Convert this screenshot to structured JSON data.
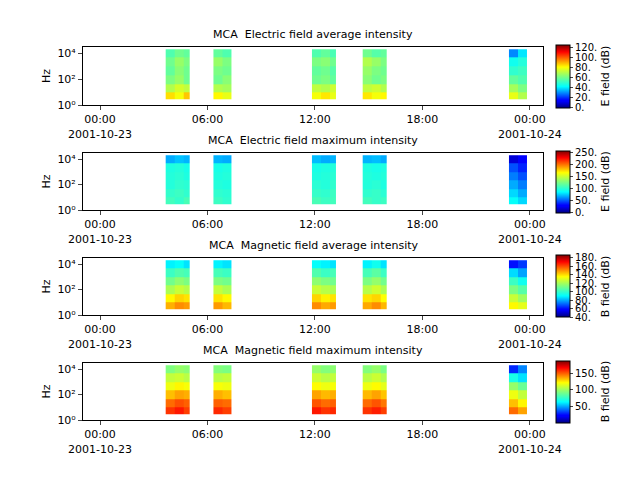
{
  "chart_data": [
    {
      "type": "heatmap",
      "title": "MCA  Electric field average intensity",
      "ylabel": "Hz",
      "log": "y",
      "x": [
        [
          "2001-10-23 03:40",
          "2001-10-23 04:10",
          "2001-10-23 04:40",
          "2001-10-23 05:00"
        ],
        [
          "2001-10-23 06:20",
          "2001-10-23 06:50",
          "2001-10-23 07:20"
        ],
        [
          "2001-10-23 11:50",
          "2001-10-23 12:20",
          "2001-10-23 12:50",
          "2001-10-23 13:10"
        ],
        [
          "2001-10-23 14:40",
          "2001-10-23 15:10",
          "2001-10-23 15:40",
          "2001-10-23 16:00"
        ],
        [
          "2001-10-23 22:50",
          "2001-10-23 23:20",
          "2001-10-23 23:50"
        ]
      ],
      "y": [
        3,
        10,
        40,
        200,
        1000,
        5000,
        20000
      ],
      "z": [
        [
          [
            85,
            80,
            88
          ],
          [
            70,
            75,
            72
          ],
          [
            62,
            66,
            60
          ],
          [
            58,
            64,
            60
          ],
          [
            60,
            66,
            62
          ],
          [
            55,
            60,
            58
          ]
        ],
        [
          [
            82,
            78
          ],
          [
            70,
            68
          ],
          [
            60,
            64
          ],
          [
            62,
            60
          ],
          [
            66,
            62
          ],
          [
            58,
            55
          ]
        ],
        [
          [
            80,
            84,
            78
          ],
          [
            72,
            70,
            74
          ],
          [
            60,
            62,
            58
          ],
          [
            58,
            60,
            56
          ],
          [
            62,
            64,
            60
          ],
          [
            55,
            58,
            54
          ]
        ],
        [
          [
            84,
            80,
            82
          ],
          [
            72,
            74,
            70
          ],
          [
            64,
            60,
            62
          ],
          [
            66,
            62,
            60
          ],
          [
            70,
            66,
            62
          ],
          [
            60,
            56,
            58
          ]
        ],
        [
          [
            78,
            70
          ],
          [
            68,
            62
          ],
          [
            58,
            55
          ],
          [
            50,
            52
          ],
          [
            45,
            48
          ],
          [
            30,
            40
          ]
        ]
      ],
      "xlim": [
        "2001-10-22 23:03",
        "2001-10-24 00:44"
      ],
      "xticks": [
        {
          "value": "2001-10-23 00:00",
          "label": "00:00\n2001-10-23"
        },
        {
          "value": "2001-10-23 06:00",
          "label": "06:00"
        },
        {
          "value": "2001-10-23 12:00",
          "label": "12:00"
        },
        {
          "value": "2001-10-23 18:00",
          "label": "18:00"
        },
        {
          "value": "2001-10-24 00:00",
          "label": "00:00\n2001-10-24"
        }
      ],
      "ylim": [
        1,
        30000
      ],
      "yticks": [
        {
          "value": 1,
          "label": "10⁰"
        },
        {
          "value": 100,
          "label": "10²"
        },
        {
          "value": 10000,
          "label": "10⁴"
        }
      ],
      "colorbar": {
        "title": "E field (dB)",
        "range": [
          0,
          125
        ],
        "ticks": [
          {
            "value": 0,
            "label": "0."
          },
          {
            "value": 20,
            "label": "20."
          },
          {
            "value": 40,
            "label": "40."
          },
          {
            "value": 60,
            "label": "60."
          },
          {
            "value": 80,
            "label": "80."
          },
          {
            "value": 100,
            "label": "100."
          },
          {
            "value": 120,
            "label": "120."
          }
        ]
      }
    },
    {
      "type": "heatmap",
      "title": "MCA  Electric field maximum intensity",
      "ylabel": "Hz",
      "log": "y",
      "x": [
        [
          "2001-10-23 03:40",
          "2001-10-23 04:10",
          "2001-10-23 04:40",
          "2001-10-23 05:00"
        ],
        [
          "2001-10-23 06:20",
          "2001-10-23 06:50",
          "2001-10-23 07:20"
        ],
        [
          "2001-10-23 11:50",
          "2001-10-23 12:20",
          "2001-10-23 12:50",
          "2001-10-23 13:10"
        ],
        [
          "2001-10-23 14:40",
          "2001-10-23 15:10",
          "2001-10-23 15:40",
          "2001-10-23 16:00"
        ],
        [
          "2001-10-23 22:50",
          "2001-10-23 23:20",
          "2001-10-23 23:50"
        ]
      ],
      "y": [
        3,
        10,
        40,
        200,
        1000,
        5000,
        20000
      ],
      "z": [
        [
          [
            110,
            105,
            112
          ],
          [
            105,
            108,
            104
          ],
          [
            100,
            104,
            102
          ],
          [
            100,
            102,
            98
          ],
          [
            98,
            100,
            96
          ],
          [
            70,
            75,
            72
          ]
        ],
        [
          [
            108,
            104
          ],
          [
            104,
            102
          ],
          [
            100,
            98
          ],
          [
            98,
            100
          ],
          [
            96,
            98
          ],
          [
            72,
            70
          ]
        ],
        [
          [
            112,
            108,
            110
          ],
          [
            106,
            104,
            108
          ],
          [
            102,
            100,
            104
          ],
          [
            98,
            100,
            102
          ],
          [
            96,
            98,
            100
          ],
          [
            74,
            70,
            72
          ]
        ],
        [
          [
            110,
            106,
            108
          ],
          [
            104,
            106,
            102
          ],
          [
            100,
            102,
            98
          ],
          [
            100,
            98,
            100
          ],
          [
            98,
            96,
            98
          ],
          [
            72,
            74,
            70
          ]
        ],
        [
          [
            90,
            80
          ],
          [
            80,
            70
          ],
          [
            70,
            60
          ],
          [
            60,
            50
          ],
          [
            50,
            40
          ],
          [
            20,
            30
          ]
        ]
      ],
      "xlim": [
        "2001-10-22 23:03",
        "2001-10-24 00:44"
      ],
      "xticks": [
        {
          "value": "2001-10-23 00:00",
          "label": "00:00\n2001-10-23"
        },
        {
          "value": "2001-10-23 06:00",
          "label": "06:00"
        },
        {
          "value": "2001-10-23 12:00",
          "label": "12:00"
        },
        {
          "value": "2001-10-23 18:00",
          "label": "18:00"
        },
        {
          "value": "2001-10-24 00:00",
          "label": "00:00\n2001-10-24"
        }
      ],
      "ylim": [
        1,
        30000
      ],
      "yticks": [
        {
          "value": 1,
          "label": "10⁰"
        },
        {
          "value": 100,
          "label": "10²"
        },
        {
          "value": 10000,
          "label": "10⁴"
        }
      ],
      "colorbar": {
        "title": "E field (dB)",
        "range": [
          0,
          260
        ],
        "ticks": [
          {
            "value": 0,
            "label": "0."
          },
          {
            "value": 50,
            "label": "50."
          },
          {
            "value": 100,
            "label": "100."
          },
          {
            "value": 150,
            "label": "150."
          },
          {
            "value": 200,
            "label": "200."
          },
          {
            "value": 250,
            "label": "250."
          }
        ]
      }
    },
    {
      "type": "heatmap",
      "title": "MCA  Magnetic field average intensity",
      "ylabel": "Hz",
      "log": "y",
      "x": [
        [
          "2001-10-23 03:40",
          "2001-10-23 04:10",
          "2001-10-23 04:40",
          "2001-10-23 05:00"
        ],
        [
          "2001-10-23 06:20",
          "2001-10-23 06:50",
          "2001-10-23 07:20"
        ],
        [
          "2001-10-23 11:50",
          "2001-10-23 12:20",
          "2001-10-23 12:50",
          "2001-10-23 13:10"
        ],
        [
          "2001-10-23 14:40",
          "2001-10-23 15:10",
          "2001-10-23 15:40",
          "2001-10-23 16:00"
        ],
        [
          "2001-10-23 22:50",
          "2001-10-23 23:20",
          "2001-10-23 23:50"
        ]
      ],
      "y": [
        3,
        10,
        40,
        200,
        1000,
        5000,
        20000
      ],
      "z": [
        [
          [
            145,
            150,
            148
          ],
          [
            135,
            140,
            138
          ],
          [
            120,
            125,
            122
          ],
          [
            110,
            115,
            112
          ],
          [
            100,
            104,
            102
          ],
          [
            88,
            90,
            86
          ]
        ],
        [
          [
            148,
            144
          ],
          [
            138,
            135
          ],
          [
            124,
            120
          ],
          [
            112,
            110
          ],
          [
            102,
            100
          ],
          [
            88,
            86
          ]
        ],
        [
          [
            150,
            146,
            148
          ],
          [
            140,
            136,
            138
          ],
          [
            125,
            122,
            120
          ],
          [
            115,
            112,
            110
          ],
          [
            104,
            100,
            102
          ],
          [
            90,
            88,
            86
          ]
        ],
        [
          [
            146,
            150,
            144
          ],
          [
            138,
            140,
            134
          ],
          [
            122,
            126,
            120
          ],
          [
            112,
            116,
            110
          ],
          [
            102,
            106,
            100
          ],
          [
            88,
            92,
            86
          ]
        ],
        [
          [
            135,
            130
          ],
          [
            125,
            118
          ],
          [
            112,
            105
          ],
          [
            100,
            92
          ],
          [
            85,
            78
          ],
          [
            60,
            65
          ]
        ]
      ],
      "xlim": [
        "2001-10-22 23:03",
        "2001-10-24 00:44"
      ],
      "xticks": [
        {
          "value": "2001-10-23 00:00",
          "label": "00:00\n2001-10-23"
        },
        {
          "value": "2001-10-23 06:00",
          "label": "06:00"
        },
        {
          "value": "2001-10-23 12:00",
          "label": "12:00"
        },
        {
          "value": "2001-10-23 18:00",
          "label": "18:00"
        },
        {
          "value": "2001-10-24 00:00",
          "label": "00:00\n2001-10-24"
        }
      ],
      "ylim": [
        1,
        30000
      ],
      "yticks": [
        {
          "value": 1,
          "label": "10⁰"
        },
        {
          "value": 100,
          "label": "10²"
        },
        {
          "value": 10000,
          "label": "10⁴"
        }
      ],
      "colorbar": {
        "title": "B field (dB)",
        "range": [
          40,
          185
        ],
        "ticks": [
          {
            "value": 40,
            "label": "40."
          },
          {
            "value": 60,
            "label": "60."
          },
          {
            "value": 80,
            "label": "80."
          },
          {
            "value": 100,
            "label": "100."
          },
          {
            "value": 120,
            "label": "120."
          },
          {
            "value": 140,
            "label": "140."
          },
          {
            "value": 160,
            "label": "160."
          },
          {
            "value": 180,
            "label": "180."
          }
        ]
      }
    },
    {
      "type": "heatmap",
      "title": "MCA  Magnetic field maximum intensity",
      "ylabel": "Hz",
      "log": "y",
      "x": [
        [
          "2001-10-23 03:40",
          "2001-10-23 04:10",
          "2001-10-23 04:40",
          "2001-10-23 05:00"
        ],
        [
          "2001-10-23 06:20",
          "2001-10-23 06:50",
          "2001-10-23 07:20"
        ],
        [
          "2001-10-23 11:50",
          "2001-10-23 12:20",
          "2001-10-23 12:50",
          "2001-10-23 13:10"
        ],
        [
          "2001-10-23 14:40",
          "2001-10-23 15:10",
          "2001-10-23 15:40",
          "2001-10-23 16:00"
        ],
        [
          "2001-10-23 22:50",
          "2001-10-23 23:20",
          "2001-10-23 23:50"
        ]
      ],
      "y": [
        3,
        10,
        40,
        200,
        1000,
        5000,
        20000
      ],
      "z": [
        [
          [
            160,
            165,
            158
          ],
          [
            150,
            155,
            152
          ],
          [
            135,
            140,
            138
          ],
          [
            120,
            125,
            122
          ],
          [
            110,
            112,
            108
          ],
          [
            95,
            100,
            98
          ]
        ],
        [
          [
            162,
            158
          ],
          [
            152,
            150
          ],
          [
            138,
            135
          ],
          [
            122,
            120
          ],
          [
            108,
            110
          ],
          [
            96,
            94
          ]
        ],
        [
          [
            165,
            160,
            162
          ],
          [
            154,
            150,
            152
          ],
          [
            140,
            136,
            138
          ],
          [
            124,
            120,
            122
          ],
          [
            112,
            108,
            110
          ],
          [
            100,
            96,
            98
          ]
        ],
        [
          [
            160,
            164,
            158
          ],
          [
            150,
            154,
            148
          ],
          [
            136,
            140,
            134
          ],
          [
            120,
            124,
            118
          ],
          [
            108,
            112,
            106
          ],
          [
            96,
            100,
            94
          ]
        ],
        [
          [
            150,
            140
          ],
          [
            135,
            125
          ],
          [
            120,
            110
          ],
          [
            100,
            90
          ],
          [
            70,
            60
          ],
          [
            30,
            45
          ]
        ]
      ],
      "xlim": [
        "2001-10-22 23:03",
        "2001-10-24 00:44"
      ],
      "xticks": [
        {
          "value": "2001-10-23 00:00",
          "label": "00:00\n2001-10-23"
        },
        {
          "value": "2001-10-23 06:00",
          "label": "06:00"
        },
        {
          "value": "2001-10-23 12:00",
          "label": "12:00"
        },
        {
          "value": "2001-10-23 18:00",
          "label": "18:00"
        },
        {
          "value": "2001-10-24 00:00",
          "label": "00:00\n2001-10-24"
        }
      ],
      "ylim": [
        1,
        30000
      ],
      "yticks": [
        {
          "value": 1,
          "label": "10⁰"
        },
        {
          "value": 100,
          "label": "10²"
        },
        {
          "value": 10000,
          "label": "10⁴"
        }
      ],
      "colorbar": {
        "title": "B field (dB)",
        "range": [
          0,
          190
        ],
        "ticks": [
          {
            "value": 50,
            "label": "50."
          },
          {
            "value": 100,
            "label": "100."
          },
          {
            "value": 150,
            "label": "150."
          }
        ]
      }
    }
  ]
}
